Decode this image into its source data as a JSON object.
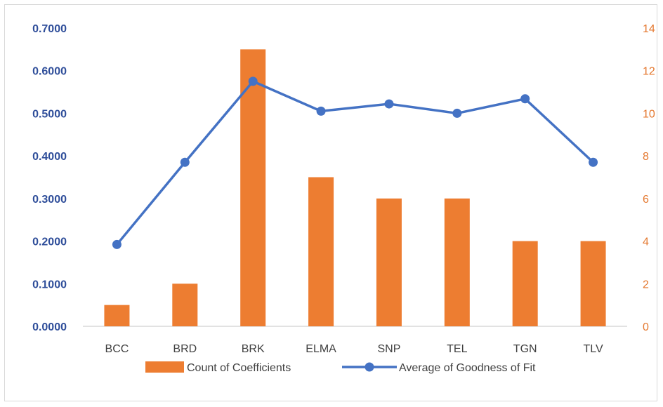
{
  "chart_data": {
    "type": "bar",
    "categories": [
      "BCC",
      "BRD",
      "BRK",
      "ELMA",
      "SNP",
      "TEL",
      "TGN",
      "TLV"
    ],
    "series": [
      {
        "name": "Count of Coefficients",
        "type": "bar",
        "axis": "right",
        "color": "#ed7d31",
        "values": [
          1,
          2,
          13,
          7,
          6,
          6,
          4,
          4
        ]
      },
      {
        "name": "Average of Goodness of Fit",
        "type": "line",
        "axis": "left",
        "color": "#4472c4",
        "values": [
          0.192,
          0.385,
          0.575,
          0.505,
          0.522,
          0.5,
          0.534,
          0.385
        ]
      }
    ],
    "y_left": {
      "lim": [
        0,
        0.7
      ],
      "ticks": [
        "0.0000",
        "0.1000",
        "0.2000",
        "0.3000",
        "0.4000",
        "0.5000",
        "0.6000",
        "0.7000"
      ]
    },
    "y_right": {
      "lim": [
        0,
        14
      ],
      "ticks": [
        "0",
        "2",
        "4",
        "6",
        "8",
        "10",
        "12",
        "14"
      ]
    },
    "grid": false,
    "legend_position": "bottom"
  }
}
